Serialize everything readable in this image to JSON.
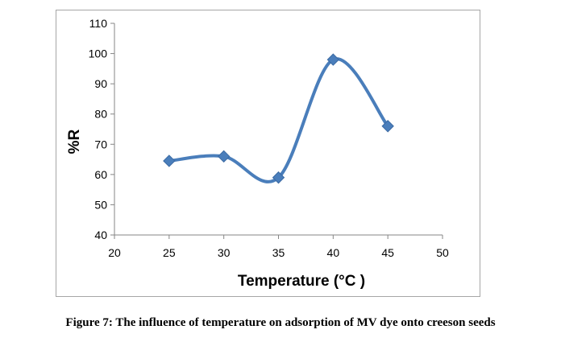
{
  "chart_data": {
    "type": "line",
    "title": "",
    "xlabel": "Temperature (°C )",
    "ylabel": "%R",
    "xlim": [
      20,
      50
    ],
    "ylim": [
      40,
      110
    ],
    "x_ticks": [
      "20",
      "25",
      "30",
      "35",
      "40",
      "45",
      "50"
    ],
    "y_ticks": [
      "40",
      "50",
      "60",
      "70",
      "80",
      "90",
      "100",
      "110"
    ],
    "grid": false,
    "legend": "none",
    "series": [
      {
        "x": [
          25,
          30,
          35,
          40,
          45
        ],
        "values": [
          64.5,
          66,
          59,
          98,
          76
        ],
        "color": "#4a7ebb",
        "line_style": "smooth",
        "marker": "diamond"
      }
    ]
  },
  "caption": "Figure 7: The influence of temperature on adsorption of MV dye onto creeson seeds"
}
